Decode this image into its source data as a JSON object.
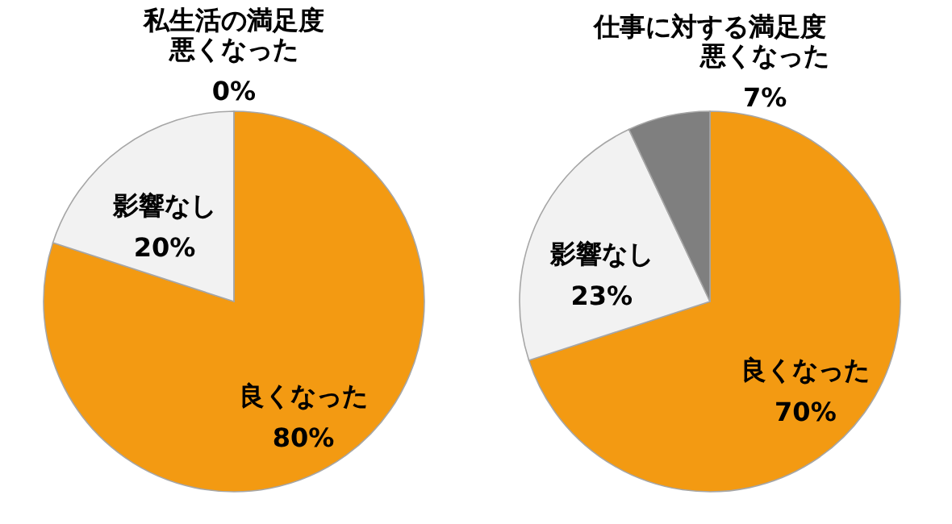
{
  "chart_data": [
    {
      "type": "pie",
      "title": "私生活の満足度",
      "categories": [
        "良くなった",
        "影響なし",
        "悪くなった"
      ],
      "values": [
        80,
        20,
        0
      ],
      "colors": [
        "#f39a12",
        "#f2f2f2",
        "#7f7f7f"
      ],
      "value_labels": [
        "80%",
        "20%",
        "0%"
      ]
    },
    {
      "type": "pie",
      "title": "仕事に対する満足度",
      "categories": [
        "良くなった",
        "影響なし",
        "悪くなった"
      ],
      "values": [
        70,
        23,
        7
      ],
      "colors": [
        "#f39a12",
        "#f2f2f2",
        "#7f7f7f"
      ],
      "value_labels": [
        "70%",
        "23%",
        "7%"
      ]
    }
  ]
}
